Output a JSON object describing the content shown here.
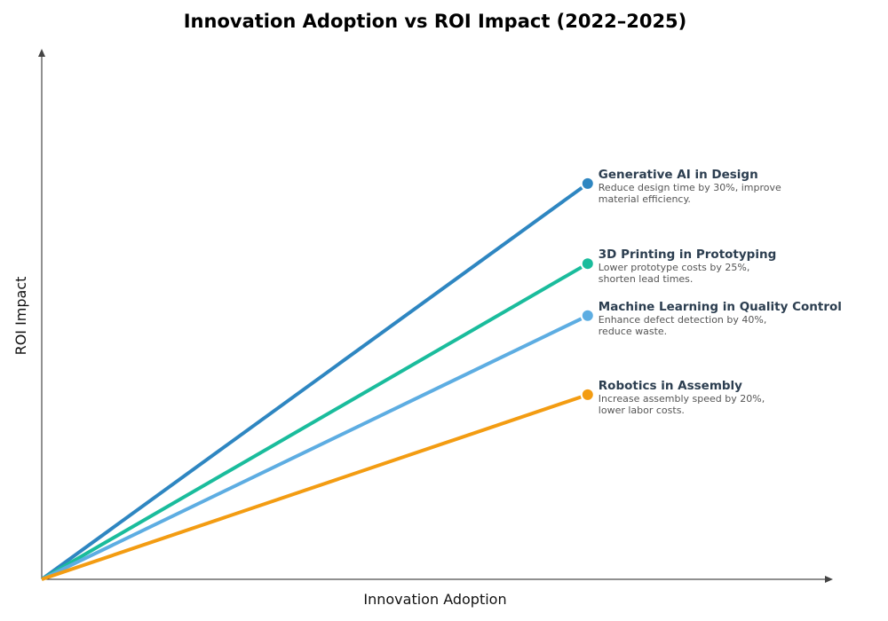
{
  "chart_data": {
    "type": "line",
    "title": "Innovation Adoption vs ROI Impact (2022–2025)",
    "xlabel": "Innovation Adoption",
    "ylabel": "ROI Impact",
    "xlim": [
      0,
      1
    ],
    "ylim": [
      0,
      1
    ],
    "grid": false,
    "series": [
      {
        "name": "Generative AI in Design",
        "description": [
          "Reduce design time by 30%, improve",
          "material efficiency."
        ],
        "color": "#2e86c1",
        "x": [
          0,
          0.69
        ],
        "y": [
          0,
          0.746
        ]
      },
      {
        "name": "3D Printing in Prototyping",
        "description": [
          "Lower prototype costs by 25%,",
          "shorten lead times."
        ],
        "color": "#1abc9c",
        "x": [
          0,
          0.69
        ],
        "y": [
          0,
          0.595
        ]
      },
      {
        "name": "Machine Learning in Quality Control",
        "description": [
          "Enhance defect detection by 40%,",
          "reduce waste."
        ],
        "color": "#5dade2",
        "x": [
          0,
          0.69
        ],
        "y": [
          0,
          0.497
        ]
      },
      {
        "name": "Robotics in Assembly",
        "description": [
          "Increase assembly speed by 20%,",
          "lower labor costs."
        ],
        "color": "#f39c12",
        "x": [
          0,
          0.69
        ],
        "y": [
          0,
          0.348
        ]
      }
    ]
  }
}
